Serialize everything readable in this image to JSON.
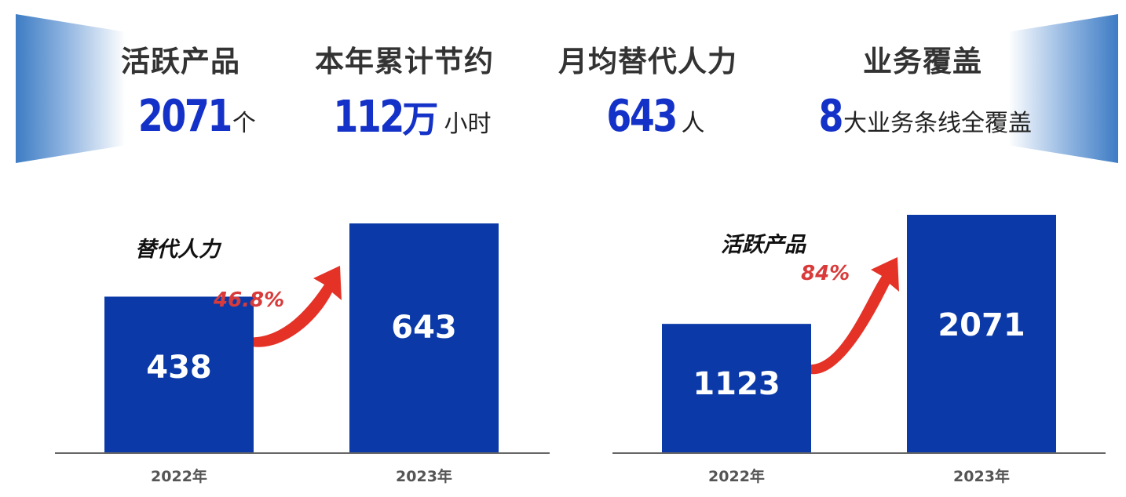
{
  "header": {
    "stats": [
      {
        "label": "活跃产品",
        "value": "2071",
        "unit": "个"
      },
      {
        "label": "本年累计节约",
        "value": "112",
        "value_suffix": "万",
        "unit": "小时"
      },
      {
        "label": "月均替代人力",
        "value": "643",
        "unit": "人"
      },
      {
        "label": "业务覆盖",
        "value": "8",
        "unit": "大业务条线全覆盖"
      }
    ]
  },
  "colors": {
    "bar": "#0b3aa8",
    "arrow": "#e53227",
    "highlight": "#1432c8"
  },
  "chart_data": [
    {
      "type": "bar",
      "title": "替代人力",
      "categories": [
        "2022年",
        "2023年"
      ],
      "values": [
        438,
        643
      ],
      "value_labels": [
        "438",
        "643"
      ],
      "growth": "46.8%"
    },
    {
      "type": "bar",
      "title": "活跃产品",
      "categories": [
        "2022年",
        "2023年"
      ],
      "values": [
        1123,
        2071
      ],
      "value_labels": [
        "1123",
        "2071"
      ],
      "growth": "84%"
    }
  ]
}
